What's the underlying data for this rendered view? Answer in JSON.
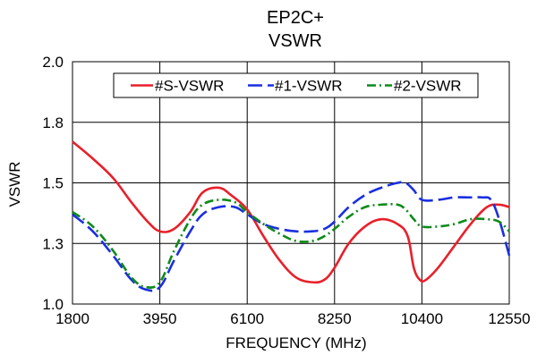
{
  "chart_data": {
    "type": "line",
    "title": "EP2C+",
    "subtitle": "VSWR",
    "xlabel": "FREQUENCY (MHz)",
    "ylabel": "VSWR",
    "xlim": [
      1800,
      12550
    ],
    "ylim": [
      1.0,
      2.0
    ],
    "x_ticks": [
      1800,
      3950,
      6100,
      8250,
      10400,
      12550
    ],
    "x_tick_labels": [
      "1800",
      "3950",
      "6100",
      "8250",
      "10400",
      "12550"
    ],
    "y_ticks": [
      1.0,
      1.25,
      1.5,
      1.75,
      2.0
    ],
    "y_tick_labels": [
      "1.0",
      "1.3",
      "1.5",
      "1.8",
      "2.0"
    ],
    "grid": true,
    "legend_position": "top",
    "series": [
      {
        "name": "#S-VSWR",
        "color": "#e8202a",
        "dash": "solid",
        "x": [
          1800,
          2300,
          2800,
          3250,
          3650,
          3950,
          4300,
          4700,
          5000,
          5400,
          5700,
          6100,
          6500,
          6900,
          7300,
          7700,
          8000,
          8250,
          8600,
          9000,
          9400,
          9800,
          10050,
          10200,
          10350,
          10500,
          10800,
          11200,
          11600,
          12000,
          12300,
          12550
        ],
        "y": [
          1.67,
          1.6,
          1.52,
          1.42,
          1.34,
          1.3,
          1.31,
          1.38,
          1.46,
          1.48,
          1.45,
          1.39,
          1.28,
          1.18,
          1.11,
          1.09,
          1.1,
          1.15,
          1.25,
          1.32,
          1.35,
          1.33,
          1.28,
          1.15,
          1.1,
          1.1,
          1.15,
          1.24,
          1.33,
          1.4,
          1.41,
          1.4
        ],
        "values": [
          1.67,
          1.6,
          1.52,
          1.42,
          1.34,
          1.3,
          1.31,
          1.38,
          1.46,
          1.48,
          1.45,
          1.39,
          1.28,
          1.18,
          1.11,
          1.09,
          1.1,
          1.15,
          1.25,
          1.32,
          1.35,
          1.33,
          1.28,
          1.15,
          1.1,
          1.1,
          1.15,
          1.24,
          1.33,
          1.4,
          1.41,
          1.4
        ]
      },
      {
        "name": "#1-VSWR",
        "color": "#1a2fe0",
        "dash": "long-dash",
        "x": [
          1800,
          2300,
          2800,
          3250,
          3600,
          3950,
          4300,
          4700,
          5000,
          5400,
          5800,
          6100,
          6500,
          6900,
          7300,
          7700,
          8000,
          8250,
          8600,
          9000,
          9400,
          9800,
          10000,
          10200,
          10400,
          10800,
          11200,
          11600,
          11900,
          12100,
          12300,
          12550
        ],
        "y": [
          1.37,
          1.3,
          1.2,
          1.1,
          1.06,
          1.07,
          1.18,
          1.3,
          1.37,
          1.4,
          1.4,
          1.37,
          1.33,
          1.31,
          1.3,
          1.3,
          1.31,
          1.34,
          1.4,
          1.45,
          1.48,
          1.5,
          1.5,
          1.47,
          1.43,
          1.43,
          1.44,
          1.44,
          1.44,
          1.43,
          1.35,
          1.2
        ],
        "values": [
          1.37,
          1.3,
          1.2,
          1.1,
          1.06,
          1.07,
          1.18,
          1.3,
          1.37,
          1.4,
          1.4,
          1.37,
          1.33,
          1.31,
          1.3,
          1.3,
          1.31,
          1.34,
          1.4,
          1.45,
          1.48,
          1.5,
          1.5,
          1.47,
          1.43,
          1.43,
          1.44,
          1.44,
          1.44,
          1.43,
          1.35,
          1.2
        ]
      },
      {
        "name": "#2-VSWR",
        "color": "#0f8a1a",
        "dash": "dash-dot",
        "x": [
          1800,
          2300,
          2800,
          3250,
          3600,
          3950,
          4300,
          4700,
          5000,
          5400,
          5800,
          6100,
          6500,
          6900,
          7300,
          7700,
          8000,
          8250,
          8600,
          9000,
          9400,
          9800,
          10000,
          10200,
          10400,
          10800,
          11200,
          11600,
          12000,
          12300,
          12550
        ],
        "y": [
          1.38,
          1.32,
          1.22,
          1.11,
          1.07,
          1.09,
          1.22,
          1.35,
          1.41,
          1.43,
          1.42,
          1.38,
          1.33,
          1.29,
          1.26,
          1.26,
          1.28,
          1.31,
          1.36,
          1.4,
          1.41,
          1.41,
          1.39,
          1.35,
          1.32,
          1.32,
          1.33,
          1.35,
          1.35,
          1.34,
          1.3
        ],
        "values": [
          1.38,
          1.32,
          1.22,
          1.11,
          1.07,
          1.09,
          1.22,
          1.35,
          1.41,
          1.43,
          1.42,
          1.38,
          1.33,
          1.29,
          1.26,
          1.26,
          1.28,
          1.31,
          1.36,
          1.4,
          1.41,
          1.41,
          1.39,
          1.35,
          1.32,
          1.32,
          1.33,
          1.35,
          1.35,
          1.34,
          1.3
        ]
      }
    ]
  }
}
